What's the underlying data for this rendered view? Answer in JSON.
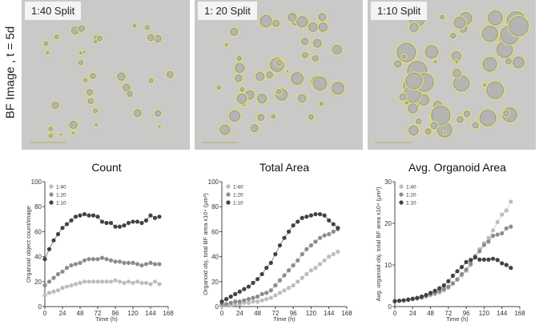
{
  "row_label": "BF Image , t = 5d",
  "images": [
    {
      "label": "1:40 Split"
    },
    {
      "label": "1: 20 Split"
    },
    {
      "label": "1:10 Split"
    }
  ],
  "colors": {
    "1:40": "#bdbdbd",
    "1:20": "#8c8c8c",
    "1:10": "#424242",
    "outline": "#e6e35a"
  },
  "chart_data": [
    {
      "type": "scatter",
      "title": "Count",
      "xlabel": "Time (h)",
      "ylabel": "Organoid object count/image",
      "xlim": [
        0,
        168
      ],
      "ylim": [
        0,
        100
      ],
      "xticks": [
        0,
        24,
        48,
        72,
        96,
        120,
        144,
        168
      ],
      "yticks": [
        0,
        20,
        40,
        60,
        80,
        100
      ],
      "legend": "top-left",
      "x": [
        0,
        6,
        12,
        18,
        24,
        30,
        36,
        42,
        48,
        54,
        60,
        66,
        72,
        78,
        84,
        90,
        96,
        102,
        108,
        114,
        120,
        126,
        132,
        138,
        144,
        150,
        156
      ],
      "series": [
        {
          "name": "1:40",
          "values": [
            9,
            11,
            12,
            13,
            15,
            16,
            17,
            18,
            19,
            20,
            20,
            20,
            20,
            20,
            20,
            20,
            21,
            20,
            19,
            20,
            19,
            20,
            19,
            19,
            18,
            20,
            18
          ]
        },
        {
          "name": "1:20",
          "values": [
            17,
            20,
            23,
            26,
            28,
            31,
            33,
            34,
            35,
            37,
            38,
            38,
            38,
            39,
            38,
            37,
            36,
            36,
            35,
            35,
            35,
            34,
            33,
            34,
            35,
            34,
            34
          ]
        },
        {
          "name": "1:10",
          "values": [
            38,
            46,
            53,
            58,
            63,
            66,
            69,
            72,
            73,
            74,
            73,
            73,
            72,
            68,
            67,
            67,
            64,
            64,
            65,
            67,
            68,
            68,
            67,
            69,
            73,
            71,
            72
          ]
        }
      ]
    },
    {
      "type": "scatter",
      "title": "Total Area",
      "xlabel": "Time (h)",
      "ylabel": "Organoid obj. total BF area x10⁴ (µm²)",
      "xlim": [
        0,
        168
      ],
      "ylim": [
        0,
        100
      ],
      "xticks": [
        0,
        24,
        48,
        72,
        96,
        120,
        144,
        168
      ],
      "yticks": [
        0,
        20,
        40,
        60,
        80,
        100
      ],
      "legend": "top-left",
      "x": [
        0,
        6,
        12,
        18,
        24,
        30,
        36,
        42,
        48,
        54,
        60,
        66,
        72,
        78,
        84,
        90,
        96,
        102,
        108,
        114,
        120,
        126,
        132,
        138,
        144,
        150,
        156
      ],
      "series": [
        {
          "name": "1:40",
          "values": [
            1,
            1,
            1,
            2,
            2,
            3,
            3,
            4,
            4,
            5,
            6,
            7,
            9,
            11,
            13,
            15,
            17,
            20,
            23,
            26,
            29,
            31,
            34,
            37,
            40,
            42,
            44
          ]
        },
        {
          "name": "1:20",
          "values": [
            2,
            2,
            3,
            4,
            4,
            5,
            6,
            7,
            8,
            10,
            11,
            13,
            17,
            21,
            25,
            29,
            33,
            37,
            42,
            46,
            49,
            52,
            55,
            57,
            58,
            60,
            62
          ]
        },
        {
          "name": "1:10",
          "values": [
            4,
            6,
            8,
            10,
            12,
            14,
            16,
            19,
            22,
            26,
            31,
            35,
            42,
            49,
            55,
            60,
            65,
            68,
            71,
            72,
            73,
            74,
            74,
            73,
            69,
            66,
            63
          ]
        }
      ]
    },
    {
      "type": "scatter",
      "title": "Avg. Organoid Area",
      "xlabel": "Time (h)",
      "ylabel": "Avg. organoid obj. total BF area x10⁴ (µm²)",
      "xlim": [
        0,
        168
      ],
      "ylim": [
        0,
        30
      ],
      "xticks": [
        0,
        24,
        48,
        72,
        96,
        120,
        144,
        168
      ],
      "yticks": [
        0,
        10,
        20,
        30
      ],
      "legend": "top-left",
      "x": [
        0,
        6,
        12,
        18,
        24,
        30,
        36,
        42,
        48,
        54,
        60,
        66,
        72,
        78,
        84,
        90,
        96,
        102,
        108,
        114,
        120,
        126,
        132,
        138,
        144,
        150,
        156
      ],
      "series": [
        {
          "name": "1:40",
          "values": [
            1.3,
            1.4,
            1.5,
            1.6,
            1.8,
            1.9,
            2.1,
            2.4,
            2.7,
            3.0,
            3.4,
            3.9,
            4.5,
            5.5,
            6.6,
            7.5,
            8.6,
            10.0,
            12.2,
            13.8,
            15.2,
            16.5,
            18.3,
            20.3,
            22.1,
            23.1,
            25.2
          ]
        },
        {
          "name": "1:20",
          "values": [
            1.3,
            1.4,
            1.5,
            1.6,
            1.8,
            2.0,
            2.2,
            2.6,
            3.0,
            3.3,
            3.7,
            4.2,
            4.8,
            5.6,
            6.5,
            7.8,
            8.9,
            10.3,
            12.0,
            13.3,
            14.8,
            15.6,
            17.0,
            17.3,
            17.6,
            18.8,
            19.2
          ]
        },
        {
          "name": "1:10",
          "values": [
            1.3,
            1.4,
            1.5,
            1.7,
            1.9,
            2.1,
            2.4,
            2.8,
            3.3,
            3.8,
            4.4,
            5.1,
            6.1,
            7.4,
            8.5,
            9.5,
            10.7,
            11.2,
            11.8,
            11.3,
            11.3,
            11.3,
            11.5,
            11.2,
            10.4,
            10.0,
            9.3
          ]
        }
      ]
    }
  ]
}
